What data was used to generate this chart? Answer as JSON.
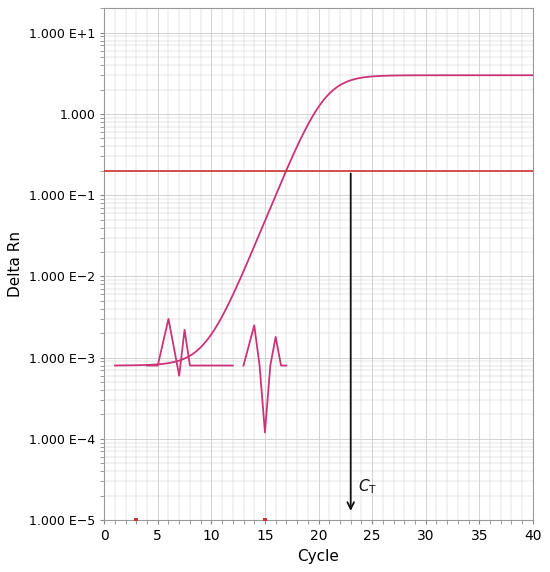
{
  "title": "",
  "xlabel": "Cycle",
  "ylabel": "Delta Rn",
  "xlim": [
    0,
    40
  ],
  "ylim_log": [
    1e-05,
    20
  ],
  "x_ticks": [
    0,
    5,
    10,
    15,
    20,
    25,
    30,
    35,
    40
  ],
  "y_tick_values": [
    1e-05,
    0.0001,
    0.001,
    0.01,
    0.1,
    1.0,
    10.0
  ],
  "y_tick_labels": [
    "1.000 E−5",
    "1.000 E−4",
    "1.000 E−3",
    "1.000 E−2",
    "1.000 E−1",
    "1.000",
    "1.000 E+1"
  ],
  "threshold_y": 0.2,
  "threshold_color": "#cc3333",
  "ct_x": 23.0,
  "ct_label": "$C_{\\mathrm{T}}$",
  "curve_color": "#cc3377",
  "arrow_color": "#111111",
  "bg_color": "#ffffff",
  "grid_color": "#cccccc",
  "noise1_x": [
    4,
    5,
    6,
    7,
    7.5,
    8,
    8.5,
    9,
    10,
    11,
    12
  ],
  "noise1_y": [
    0.0008,
    0.0008,
    0.003,
    0.0006,
    0.0022,
    0.0008,
    0.0008,
    0.0008,
    0.0008,
    0.0008,
    0.0008
  ],
  "noise2_x": [
    13,
    14,
    14.5,
    15,
    15.5,
    16,
    16.5,
    17
  ],
  "noise2_y": [
    0.0008,
    0.0025,
    0.0008,
    0.00012,
    0.0008,
    0.0018,
    0.0008,
    0.0008
  ],
  "red_tick1_x": 3,
  "red_tick2_x": 15
}
